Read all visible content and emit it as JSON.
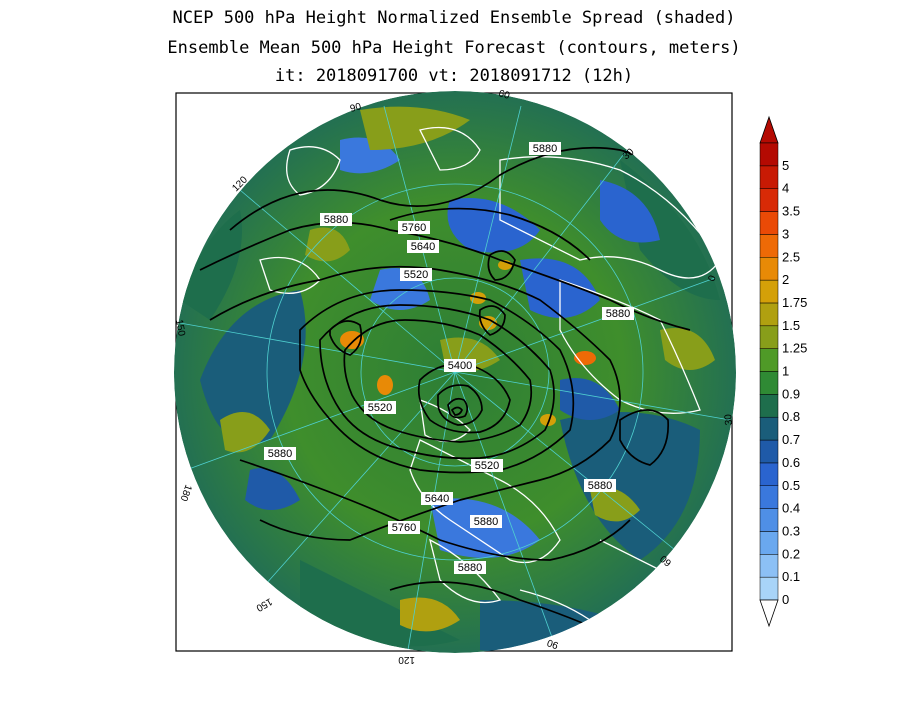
{
  "titles": {
    "line1": "NCEP 500 hPa Height Normalized Ensemble Spread (shaded)",
    "line2": "Ensemble Mean 500 hPa Height Forecast (contours, meters)",
    "line3": "it: 2018091700      vt: 2018091712 (12h)"
  },
  "longitude_labels": [
    {
      "text": "90"
    },
    {
      "text": "60"
    },
    {
      "text": "30"
    },
    {
      "text": "0"
    },
    {
      "text": "30"
    },
    {
      "text": "60"
    },
    {
      "text": "90"
    },
    {
      "text": "120"
    },
    {
      "text": "150"
    },
    {
      "text": "180"
    },
    {
      "text": "150"
    },
    {
      "text": "120"
    }
  ],
  "contour_labels": [
    {
      "text": "5880"
    },
    {
      "text": "5880"
    },
    {
      "text": "5760"
    },
    {
      "text": "5640"
    },
    {
      "text": "5520"
    },
    {
      "text": "5880"
    },
    {
      "text": "5400"
    },
    {
      "text": "5520"
    },
    {
      "text": "5880"
    },
    {
      "text": "5520"
    },
    {
      "text": "5880"
    },
    {
      "text": "5640"
    },
    {
      "text": "5760"
    },
    {
      "text": "5880"
    },
    {
      "text": "5880"
    }
  ],
  "colorbar": {
    "levels": [
      "0",
      "0.1",
      "0.2",
      "0.3",
      "0.4",
      "0.5",
      "0.6",
      "0.7",
      "0.8",
      "0.9",
      "1",
      "1.25",
      "1.5",
      "1.75",
      "2",
      "2.5",
      "3",
      "3.5",
      "4",
      "5"
    ],
    "colors": [
      "#a8d4f8",
      "#8cc0f5",
      "#6aa8ef",
      "#4f8fe6",
      "#3a78dd",
      "#2a64cf",
      "#1f5aa8",
      "#1a5d7a",
      "#1e6e4c",
      "#2f8a34",
      "#4f9a27",
      "#889e1a",
      "#b0a010",
      "#d4a008",
      "#e88a06",
      "#ee6a06",
      "#ea4a06",
      "#d82a06",
      "#c81a04",
      "#b40a02"
    ],
    "arrow_top_color": "#b40a02",
    "arrow_bottom_color": "#ffffff"
  }
}
